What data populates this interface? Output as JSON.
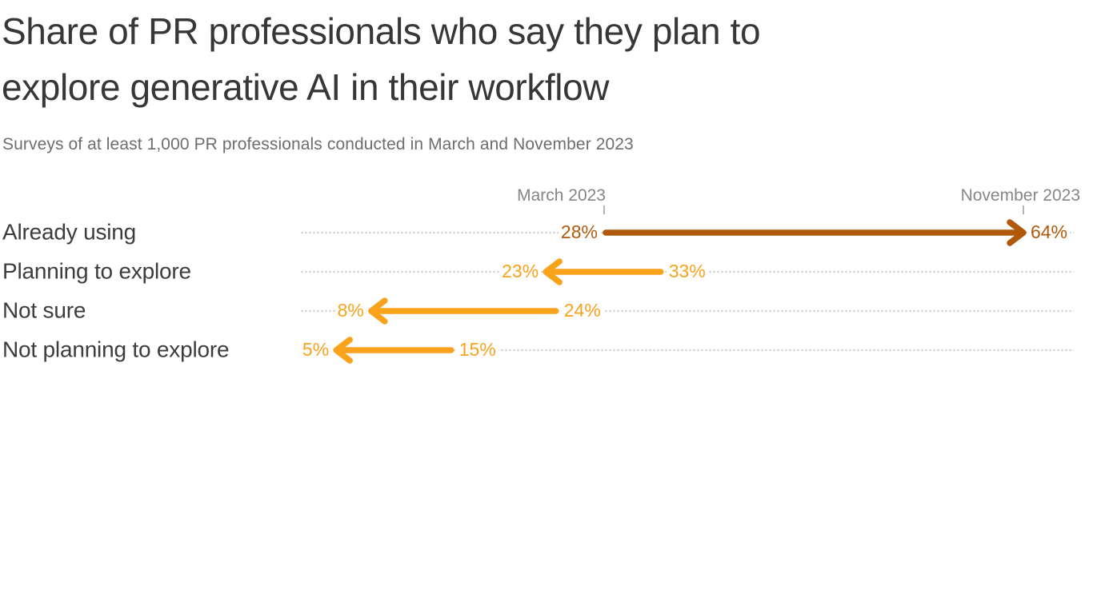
{
  "header": {
    "title_line1": "Share of PR professionals who say they plan to",
    "title_line2": "explore generative AI in their workflow",
    "subtitle": "Surveys of at least 1,000 PR professionals conducted in March and November 2023"
  },
  "axis": {
    "march_label": "March 2023",
    "november_label": "November 2023"
  },
  "colors": {
    "increase_arrow": "#B0590B",
    "decrease_arrow": "#F9A21B",
    "title_text": "#373737",
    "subtitle_text": "#6E6E6E",
    "axis_label_text": "#868686",
    "category_text": "#3C3C3C",
    "gridline_dots": "#CFCFCF",
    "tick": "#B5B5B5",
    "background": "#FFFFFF"
  },
  "chart_data": {
    "type": "arrow",
    "title": "Share of PR professionals who say they plan to explore generative AI in their workflow",
    "subtitle": "Surveys of at least 1,000 PR professionals conducted in March and November 2023",
    "unit": "%",
    "value_suffix": "%",
    "columns": [
      "March 2023",
      "November 2023"
    ],
    "categories": [
      "Already using",
      "Planning to explore",
      "Not sure",
      "Not planning to explore"
    ],
    "series": [
      {
        "name": "March 2023",
        "values": [
          28,
          33,
          24,
          15
        ]
      },
      {
        "name": "November 2023",
        "values": [
          64,
          23,
          8,
          5
        ]
      }
    ],
    "rows": [
      {
        "label": "Already using",
        "march": 28,
        "november": 64,
        "change": "increase",
        "color": "#B0590B"
      },
      {
        "label": "Planning to explore",
        "march": 33,
        "november": 23,
        "change": "decrease",
        "color": "#F9A21B"
      },
      {
        "label": "Not sure",
        "march": 24,
        "november": 8,
        "change": "decrease",
        "color": "#F9A21B"
      },
      {
        "label": "Not planning to explore",
        "march": 15,
        "november": 5,
        "change": "decrease",
        "color": "#F9A21B"
      }
    ],
    "xlim": [
      0,
      100
    ],
    "legend": "none",
    "grid": "dotted horizontal row guides"
  }
}
